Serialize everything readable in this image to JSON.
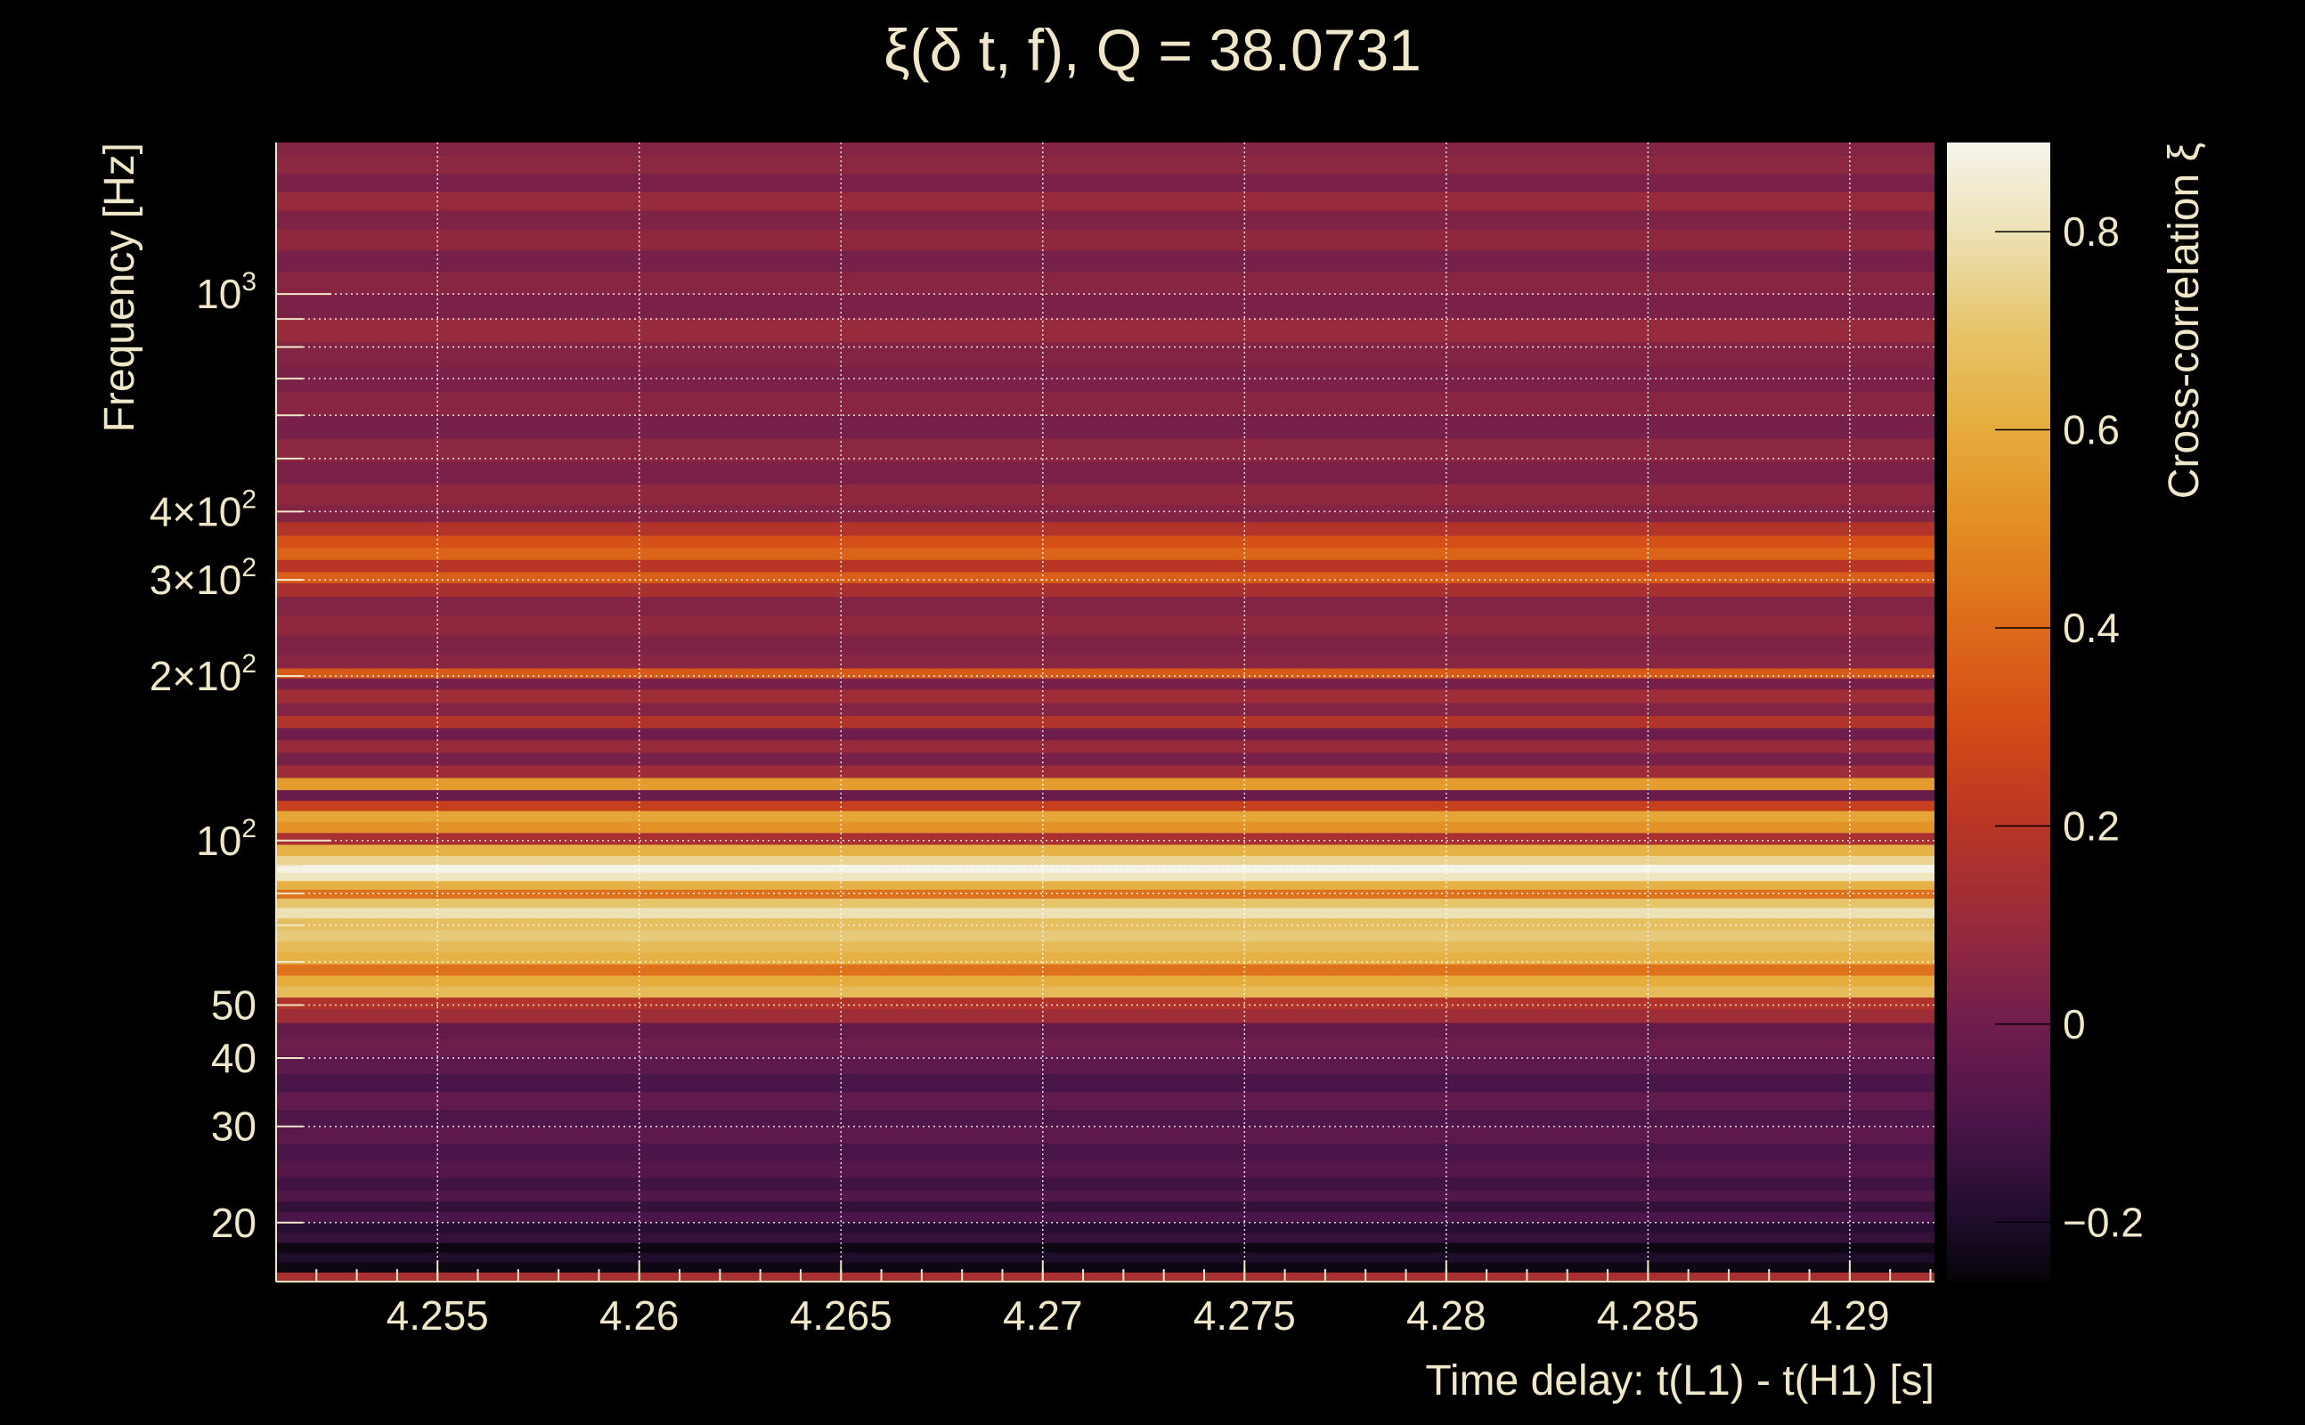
{
  "chart_data": {
    "type": "heatmap",
    "title": "ξ(δ t, f), Q = 38.0731",
    "xlabel": "Time delay: t(L1) - t(H1) [s]",
    "ylabel": "Frequency [Hz]",
    "colorbar_label": "Cross-correlation ξ",
    "xlim": [
      4.251,
      4.2921
    ],
    "ylim": [
      15.6,
      1893
    ],
    "yscale": "log",
    "clim": [
      -0.26,
      0.89
    ],
    "grid": true,
    "x_ticks": [
      {
        "value": 4.255,
        "label": "4.255"
      },
      {
        "value": 4.26,
        "label": "4.26"
      },
      {
        "value": 4.265,
        "label": "4.265"
      },
      {
        "value": 4.27,
        "label": "4.27"
      },
      {
        "value": 4.275,
        "label": "4.275"
      },
      {
        "value": 4.28,
        "label": "4.28"
      },
      {
        "value": 4.285,
        "label": "4.285"
      },
      {
        "value": 4.29,
        "label": "4.29"
      }
    ],
    "y_ticks": [
      {
        "value": 20,
        "label": "20",
        "exp": ""
      },
      {
        "value": 30,
        "label": "30",
        "exp": ""
      },
      {
        "value": 40,
        "label": "40",
        "exp": ""
      },
      {
        "value": 50,
        "label": "50",
        "exp": ""
      },
      {
        "value": 100,
        "label": "10",
        "exp": "2"
      },
      {
        "value": 200,
        "label": "2×10",
        "exp": "2"
      },
      {
        "value": 300,
        "label": "3×10",
        "exp": "2"
      },
      {
        "value": 400,
        "label": "4×10",
        "exp": "2"
      },
      {
        "value": 1000,
        "label": "10",
        "exp": "3"
      }
    ],
    "y_grid": [
      20,
      30,
      40,
      50,
      60,
      70,
      80,
      90,
      100,
      200,
      300,
      400,
      500,
      600,
      700,
      800,
      900,
      1000
    ],
    "colorbar_ticks": [
      {
        "value": 0.8,
        "label": "0.8"
      },
      {
        "value": 0.6,
        "label": "0.6"
      },
      {
        "value": 0.4,
        "label": "0.4"
      },
      {
        "value": 0.2,
        "label": "0.2"
      },
      {
        "value": 0,
        "label": "0"
      },
      {
        "value": -0.2,
        "label": "−0.2"
      }
    ],
    "colormap": [
      [
        -0.26,
        "#050308"
      ],
      [
        -0.2,
        "#1d0c2a"
      ],
      [
        -0.1,
        "#4a1548"
      ],
      [
        0,
        "#6f1d4d"
      ],
      [
        0.1,
        "#972b3c"
      ],
      [
        0.2,
        "#b83525"
      ],
      [
        0.3,
        "#d34b16"
      ],
      [
        0.4,
        "#dd6a1a"
      ],
      [
        0.5,
        "#e28c22"
      ],
      [
        0.6,
        "#e6ac3c"
      ],
      [
        0.7,
        "#e6c46a"
      ],
      [
        0.8,
        "#ede2b5"
      ],
      [
        0.89,
        "#f6f4ec"
      ]
    ],
    "rows": [
      {
        "f": 15.9,
        "v": 0.15
      },
      {
        "f": 16.6,
        "v": -0.24
      },
      {
        "f": 17.3,
        "v": -0.2
      },
      {
        "f": 18.0,
        "v": -0.24
      },
      {
        "f": 18.8,
        "v": -0.15
      },
      {
        "f": 19.6,
        "v": -0.18
      },
      {
        "f": 20.5,
        "v": -0.1
      },
      {
        "f": 21.4,
        "v": -0.15
      },
      {
        "f": 22.4,
        "v": -0.08
      },
      {
        "f": 23.5,
        "v": -0.12
      },
      {
        "f": 25,
        "v": -0.07
      },
      {
        "f": 27,
        "v": -0.1
      },
      {
        "f": 29,
        "v": -0.05
      },
      {
        "f": 31,
        "v": -0.09
      },
      {
        "f": 33.5,
        "v": -0.04
      },
      {
        "f": 36,
        "v": -0.1
      },
      {
        "f": 39,
        "v": -0.05
      },
      {
        "f": 42,
        "v": 0.0
      },
      {
        "f": 45,
        "v": -0.03
      },
      {
        "f": 48,
        "v": 0.12
      },
      {
        "f": 50.5,
        "v": 0.18
      },
      {
        "f": 53,
        "v": 0.66
      },
      {
        "f": 55.5,
        "v": 0.6
      },
      {
        "f": 58,
        "v": 0.42
      },
      {
        "f": 61,
        "v": 0.62
      },
      {
        "f": 64,
        "v": 0.66
      },
      {
        "f": 67,
        "v": 0.72
      },
      {
        "f": 70.5,
        "v": 0.68
      },
      {
        "f": 74,
        "v": 0.8
      },
      {
        "f": 77,
        "v": 0.7
      },
      {
        "f": 80,
        "v": 0.42
      },
      {
        "f": 83,
        "v": 0.62
      },
      {
        "f": 86,
        "v": 0.82
      },
      {
        "f": 89,
        "v": 0.88
      },
      {
        "f": 92,
        "v": 0.75
      },
      {
        "f": 96,
        "v": 0.62
      },
      {
        "f": 101,
        "v": 0.15
      },
      {
        "f": 106,
        "v": 0.52
      },
      {
        "f": 111,
        "v": 0.58
      },
      {
        "f": 116,
        "v": 0.25
      },
      {
        "f": 121,
        "v": -0.02
      },
      {
        "f": 127,
        "v": 0.55
      },
      {
        "f": 134,
        "v": 0.12
      },
      {
        "f": 141,
        "v": 0.02
      },
      {
        "f": 149,
        "v": 0.1
      },
      {
        "f": 157,
        "v": 0.0
      },
      {
        "f": 165,
        "v": 0.18
      },
      {
        "f": 174,
        "v": 0.05
      },
      {
        "f": 184,
        "v": 0.12
      },
      {
        "f": 195,
        "v": 0.02
      },
      {
        "f": 202,
        "v": 0.35
      },
      {
        "f": 212,
        "v": 0.06
      },
      {
        "f": 228,
        "v": 0.04
      },
      {
        "f": 248,
        "v": 0.08
      },
      {
        "f": 270,
        "v": 0.05
      },
      {
        "f": 290,
        "v": 0.15
      },
      {
        "f": 303,
        "v": 0.36
      },
      {
        "f": 318,
        "v": 0.2
      },
      {
        "f": 336,
        "v": 0.38
      },
      {
        "f": 352,
        "v": 0.32
      },
      {
        "f": 372,
        "v": 0.18
      },
      {
        "f": 395,
        "v": 0.05
      },
      {
        "f": 430,
        "v": 0.08
      },
      {
        "f": 470,
        "v": 0.03
      },
      {
        "f": 520,
        "v": 0.07
      },
      {
        "f": 570,
        "v": 0.02
      },
      {
        "f": 630,
        "v": 0.06
      },
      {
        "f": 700,
        "v": 0.03
      },
      {
        "f": 780,
        "v": 0.05
      },
      {
        "f": 860,
        "v": 0.1
      },
      {
        "f": 950,
        "v": 0.03
      },
      {
        "f": 1050,
        "v": 0.06
      },
      {
        "f": 1150,
        "v": 0.02
      },
      {
        "f": 1260,
        "v": 0.08
      },
      {
        "f": 1370,
        "v": 0.04
      },
      {
        "f": 1480,
        "v": 0.1
      },
      {
        "f": 1600,
        "v": 0.03
      },
      {
        "f": 1730,
        "v": 0.07
      },
      {
        "f": 1860,
        "v": 0.05
      }
    ]
  }
}
